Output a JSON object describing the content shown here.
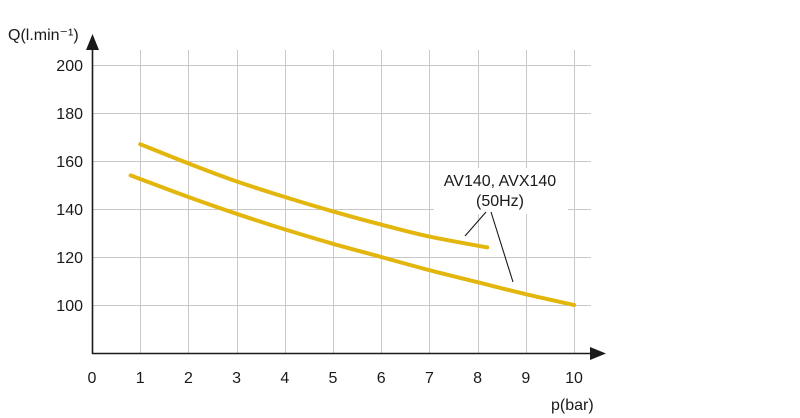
{
  "chart_data": {
    "type": "line",
    "title": "",
    "xlabel": "p(bar)",
    "ylabel": "Q(l.min⁻¹)",
    "xlim": [
      0,
      10
    ],
    "ylim": [
      80,
      208
    ],
    "xticks": [
      "0",
      "1",
      "2",
      "3",
      "4",
      "5",
      "6",
      "7",
      "8",
      "9",
      "10"
    ],
    "yticks": [
      "100",
      "120",
      "140",
      "160",
      "180",
      "200"
    ],
    "grid": true,
    "line_color": "#e2b60c",
    "annotation": {
      "lines": [
        "AV140, AVX140",
        "(50Hz)"
      ]
    },
    "series": [
      {
        "x": [
          1,
          2,
          3,
          4,
          5,
          6,
          7,
          8.2
        ],
        "y": [
          167,
          159,
          151.5,
          145,
          139,
          133.5,
          128.5,
          124
        ]
      },
      {
        "x": [
          0.8,
          1,
          2,
          3,
          4,
          5,
          6,
          7,
          8,
          9,
          10
        ],
        "y": [
          154,
          152.5,
          145,
          138,
          131.5,
          125.5,
          120,
          114.5,
          109.5,
          104.5,
          100
        ]
      }
    ]
  }
}
